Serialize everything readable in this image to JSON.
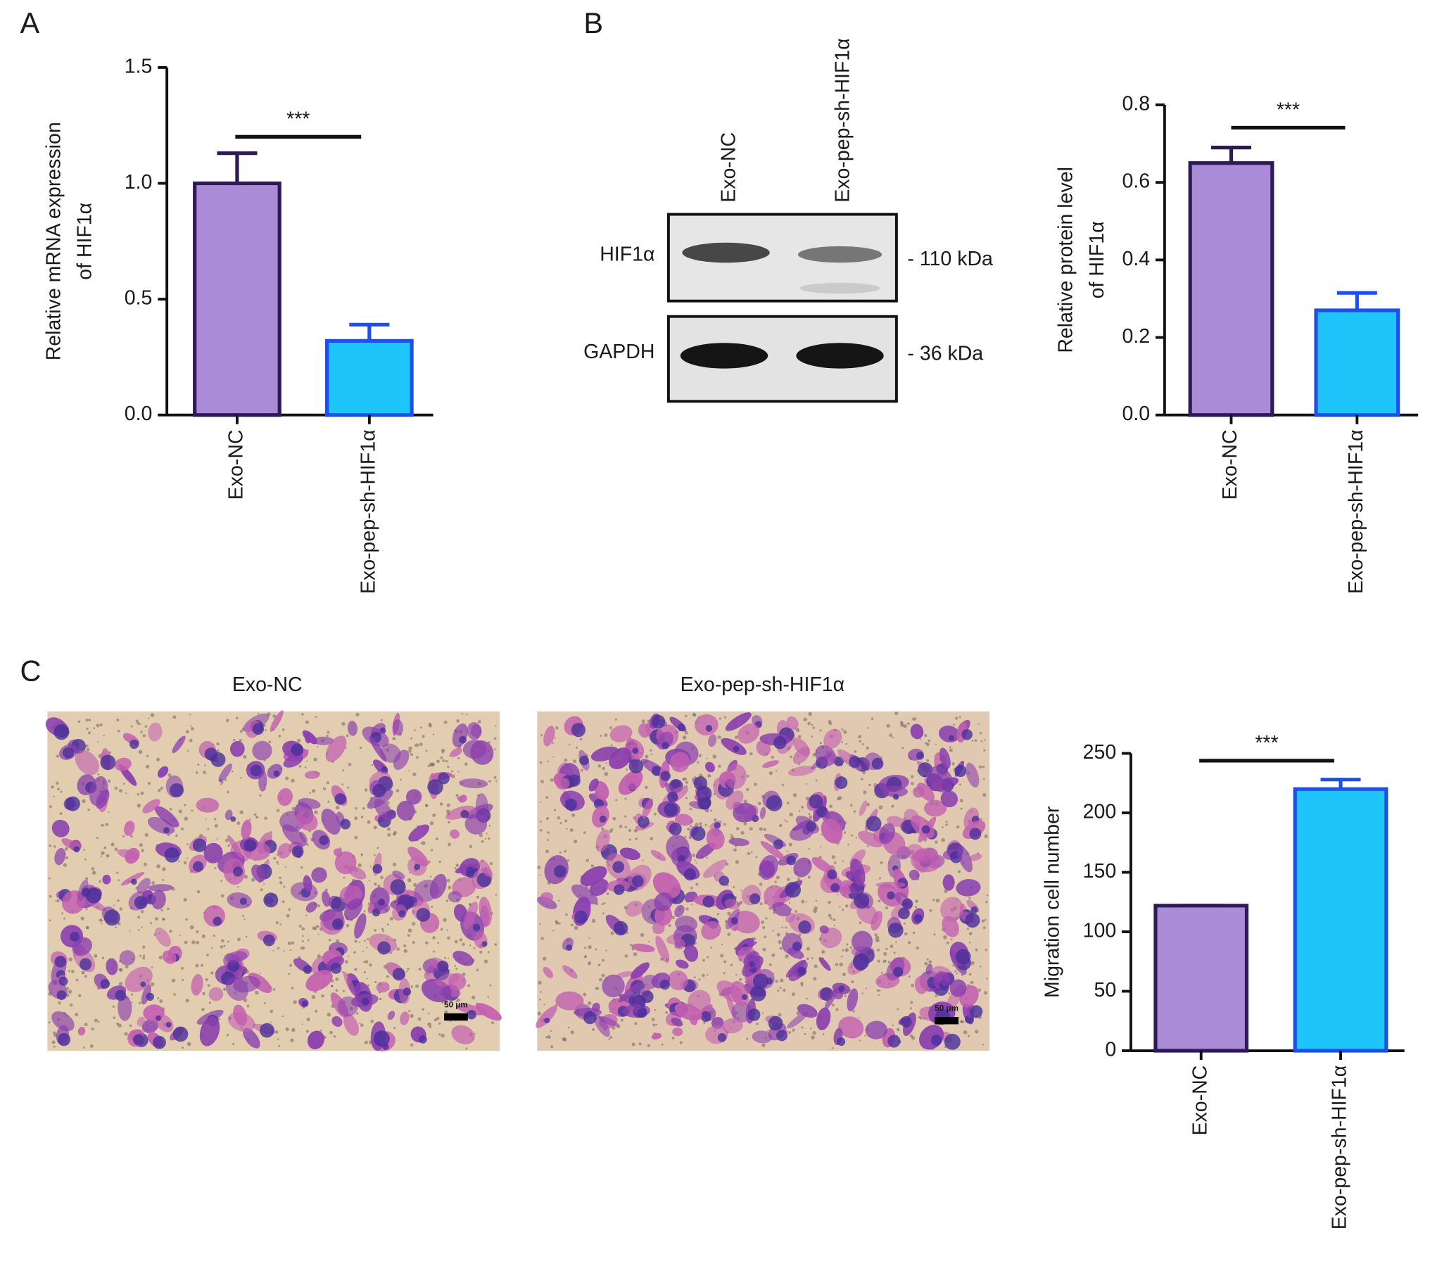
{
  "panel_labels": [
    "A",
    "B",
    "C"
  ],
  "chart_data": [
    {
      "type": "bar",
      "ylabel": [
        "Relative mRNA expression",
        "of HIF1α"
      ],
      "annotation": "***",
      "categories": [
        "Exo-NC",
        "Exo-pep-sh-HIF1α"
      ],
      "values": [
        1.0,
        0.32
      ],
      "errors": [
        0.13,
        0.07
      ],
      "colors": [
        "#a98bd8",
        "#1ec5fa"
      ],
      "edge_colors": [
        "#2e1a55",
        "#1f4fe8"
      ],
      "ylim": [
        0,
        1.5
      ],
      "yticks": [
        {
          "value": 0,
          "label": "0.0"
        },
        {
          "value": 0.5,
          "label": "0.5"
        },
        {
          "value": 1,
          "label": "1.0"
        },
        {
          "value": 1.5,
          "label": "1.5"
        }
      ]
    },
    {
      "type": "bar",
      "ylabel": [
        "Relative protein level",
        "of HIF1α"
      ],
      "annotation": "***",
      "categories": [
        "Exo-NC",
        "Exo-pep-sh-HIF1α"
      ],
      "values": [
        0.65,
        0.27
      ],
      "errors": [
        0.04,
        0.045
      ],
      "colors": [
        "#a98bd8",
        "#1ec5fa"
      ],
      "edge_colors": [
        "#2e1a55",
        "#1f4fe8"
      ],
      "ylim": [
        0,
        0.8
      ],
      "yticks": [
        {
          "value": 0,
          "label": "0.0"
        },
        {
          "value": 0.2,
          "label": "0.2"
        },
        {
          "value": 0.4,
          "label": "0.4"
        },
        {
          "value": 0.6,
          "label": "0.6"
        },
        {
          "value": 0.8,
          "label": "0.8"
        }
      ]
    },
    {
      "type": "bar",
      "ylabel": [
        "Migration cell number"
      ],
      "annotation": "***",
      "categories": [
        "Exo-NC",
        "Exo-pep-sh-HIF1α"
      ],
      "values": [
        122,
        220
      ],
      "errors": [
        0,
        8
      ],
      "colors": [
        "#a98bd8",
        "#1ec5fa"
      ],
      "edge_colors": [
        "#2e1a55",
        "#1f4fe8"
      ],
      "ylim": [
        0,
        250
      ],
      "yticks": [
        0,
        50,
        100,
        150,
        200,
        250
      ]
    }
  ],
  "western_blot": {
    "lanes": [
      "Exo-NC",
      "Exo-pep-sh-HIF1α"
    ],
    "rows": [
      {
        "label": "HIF1α",
        "size": "- 110 kDa"
      },
      {
        "label": "GAPDH",
        "size": "- 36 kDa"
      }
    ]
  },
  "micrographs": {
    "titles": [
      "Exo-NC",
      "Exo-pep-sh-HIF1α"
    ],
    "scale_bar": "50 μm"
  }
}
